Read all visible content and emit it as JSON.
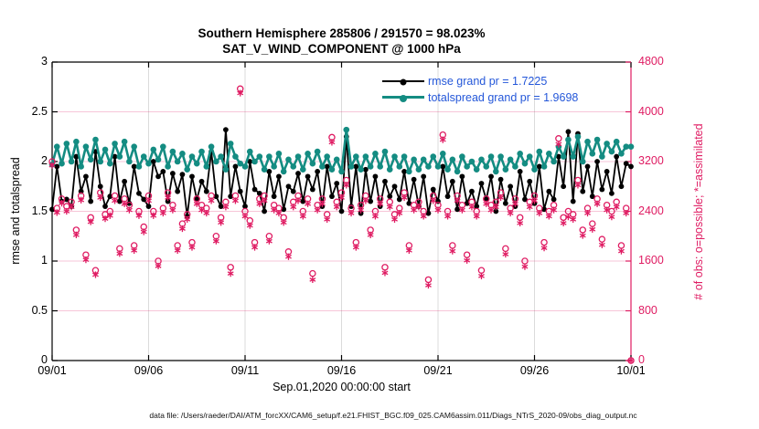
{
  "figure": {
    "title_line1": "Southern Hemisphere 285806 / 291570 = 98.023%",
    "title_line2": "SAT_V_WIND_COMPONENT @ 1000 hPa",
    "xlabel": "Sep.01,2020 00:00:00 start",
    "ylabel_left": "rmse and totalspread",
    "ylabel_right": "# of obs: o=possible; *=assimilated",
    "footer": "data file: /Users/raeder/DAI/ATM_forcXX/CAM6_setup/f.e21.FHIST_BGC.f09_025.CAM6assim.011/Diags_NTrS_2020-09/obs_diag_output.nc",
    "colors": {
      "rmse": "#000000",
      "totalspread": "#148c82",
      "obs": "#df1b62",
      "legend_text": "#2457d9",
      "grid_vertical": "rgba(0,0,0,0.14)",
      "grid_horizontal": "rgba(223,27,98,0.25)"
    }
  },
  "legend": {
    "rmse_label": "rmse grand pr = 1.7225",
    "totalspread_label": "totalspread grand pr = 1.9698"
  },
  "chart_data": {
    "type": "line",
    "title": "Southern Hemisphere 285806 / 291570 = 98.023% | SAT_V_WIND_COMPONENT @ 1000 hPa",
    "x_axis": {
      "label": "Sep.01,2020 00:00:00 start",
      "tick_labels": [
        "09/01",
        "09/06",
        "09/11",
        "09/16",
        "09/21",
        "09/26",
        "10/01"
      ],
      "tick_indices": [
        0,
        20,
        40,
        60,
        80,
        100,
        120
      ],
      "points_per_day": 4,
      "n_points": 121
    },
    "y_left": {
      "label": "rmse and totalspread",
      "min": 0,
      "max": 3,
      "tick_values": [
        0,
        0.5,
        1,
        1.5,
        2,
        2.5,
        3
      ],
      "tick_labels": [
        "0",
        "0.5",
        "1",
        "1.5",
        "2",
        "2.5",
        "3"
      ]
    },
    "y_right": {
      "label": "# of obs: o=possible; *=assimilated",
      "min": 0,
      "max": 4800,
      "tick_values": [
        0,
        800,
        1600,
        2400,
        3200,
        4000,
        4800
      ],
      "tick_labels": [
        "0",
        "800",
        "1600",
        "2400",
        "3200",
        "4000",
        "4800"
      ]
    },
    "legend_position": "upper-right-inside",
    "grid": true,
    "series": [
      {
        "name": "rmse",
        "axis": "left",
        "style": "line-dot",
        "grand_pr": 1.7225,
        "values": [
          1.52,
          1.95,
          1.6,
          1.62,
          1.55,
          2.05,
          1.7,
          1.85,
          1.6,
          2.1,
          1.75,
          1.55,
          1.65,
          2.05,
          1.6,
          1.8,
          1.58,
          1.95,
          1.68,
          1.62,
          1.55,
          2.0,
          1.85,
          1.9,
          1.6,
          1.88,
          1.7,
          1.87,
          1.45,
          1.85,
          1.62,
          1.8,
          1.7,
          2.1,
          1.65,
          1.55,
          2.32,
          1.65,
          1.95,
          1.7,
          1.55,
          2.0,
          1.72,
          1.68,
          1.5,
          1.9,
          1.65,
          1.85,
          1.52,
          1.75,
          1.7,
          1.88,
          1.6,
          1.85,
          1.72,
          1.9,
          1.55,
          1.95,
          1.65,
          1.78,
          1.5,
          2.25,
          1.55,
          1.95,
          1.48,
          1.92,
          1.6,
          1.85,
          1.55,
          1.8,
          1.65,
          1.75,
          1.62,
          1.9,
          1.58,
          1.82,
          1.55,
          1.85,
          1.48,
          1.72,
          1.6,
          1.95,
          1.65,
          1.8,
          1.52,
          1.85,
          1.58,
          1.7,
          1.55,
          1.78,
          1.62,
          1.85,
          1.5,
          1.82,
          1.58,
          1.75,
          1.55,
          1.9,
          1.62,
          1.8,
          1.58,
          1.95,
          1.52,
          1.7,
          1.62,
          2.05,
          1.75,
          2.3,
          1.6,
          2.28,
          1.7,
          1.95,
          1.65,
          2.0,
          1.72,
          1.9,
          1.68,
          2.05,
          1.75,
          1.98,
          1.95
        ]
      },
      {
        "name": "totalspread",
        "axis": "left",
        "style": "line-dot",
        "grand_pr": 1.9698,
        "values": [
          1.97,
          2.15,
          1.98,
          2.18,
          2.0,
          2.2,
          1.95,
          2.15,
          2.02,
          2.22,
          2.0,
          2.12,
          1.98,
          2.18,
          2.05,
          2.2,
          2.0,
          2.15,
          1.95,
          2.05,
          1.98,
          2.12,
          2.02,
          2.15,
          1.95,
          2.1,
          2.0,
          2.08,
          1.92,
          2.05,
          1.98,
          2.1,
          1.95,
          2.15,
          2.0,
          2.05,
          1.92,
          2.18,
          2.05,
          1.98,
          1.95,
          2.1,
          2.0,
          2.05,
          1.92,
          2.05,
          1.95,
          2.08,
          1.9,
          2.02,
          1.95,
          2.05,
          1.92,
          2.08,
          1.98,
          2.1,
          1.95,
          2.05,
          1.92,
          2.02,
          1.9,
          2.32,
          1.95,
          2.05,
          1.92,
          2.05,
          1.95,
          2.08,
          1.95,
          2.1,
          1.92,
          2.05,
          1.95,
          2.05,
          1.9,
          2.02,
          1.92,
          2.02,
          1.95,
          2.05,
          1.95,
          2.08,
          1.92,
          2.02,
          1.9,
          2.05,
          1.95,
          2.0,
          1.92,
          2.02,
          1.95,
          2.05,
          1.9,
          2.05,
          1.92,
          2.02,
          1.95,
          2.08,
          1.98,
          2.05,
          1.92,
          2.1,
          1.95,
          2.08,
          2.0,
          2.15,
          2.05,
          2.22,
          2.05,
          2.25,
          2.0,
          2.2,
          2.08,
          2.22,
          2.05,
          2.18,
          2.1,
          2.2,
          2.08,
          2.15,
          2.15
        ]
      },
      {
        "name": "possible",
        "axis": "right",
        "style": "circle",
        "values": [
          3200,
          2450,
          2600,
          2480,
          2550,
          2100,
          2650,
          1700,
          2300,
          1450,
          2700,
          2350,
          2400,
          2650,
          1800,
          2600,
          2500,
          1850,
          2400,
          2150,
          2650,
          2400,
          1600,
          2450,
          2700,
          2500,
          1850,
          2200,
          2350,
          1900,
          2600,
          2500,
          2450,
          2650,
          2000,
          2300,
          2550,
          1500,
          2650,
          4370,
          2400,
          2250,
          1900,
          2600,
          2650,
          2000,
          2500,
          2450,
          2300,
          1750,
          2550,
          2650,
          2400,
          2600,
          1400,
          2500,
          2600,
          2350,
          3590,
          2550,
          2700,
          2900,
          2450,
          1900,
          2500,
          2650,
          2100,
          2400,
          2600,
          1500,
          2550,
          2350,
          2450,
          2700,
          1850,
          2500,
          2550,
          2400,
          1300,
          2650,
          2500,
          3630,
          2400,
          1850,
          2650,
          2500,
          1700,
          2550,
          2400,
          1450,
          2600,
          2500,
          2550,
          2700,
          1800,
          2450,
          2600,
          2300,
          1600,
          2550,
          2650,
          2450,
          1900,
          2400,
          2500,
          3570,
          2300,
          2400,
          2350,
          2900,
          2100,
          2450,
          2200,
          2600,
          1950,
          2500,
          2400,
          2550,
          1850,
          2450,
          0
        ]
      },
      {
        "name": "assimilated",
        "axis": "right",
        "style": "asterisk",
        "values": [
          3140,
          2380,
          2530,
          2400,
          2470,
          2020,
          2580,
          1620,
          2230,
          1380,
          2620,
          2280,
          2330,
          2570,
          1720,
          2520,
          2420,
          1770,
          2330,
          2070,
          2570,
          2330,
          1520,
          2370,
          2620,
          2420,
          1770,
          2120,
          2270,
          1820,
          2520,
          2420,
          2370,
          2570,
          1920,
          2220,
          2470,
          1400,
          2570,
          4300,
          2320,
          2170,
          1820,
          2520,
          2570,
          1920,
          2420,
          2370,
          2220,
          1670,
          2470,
          2570,
          2320,
          2520,
          1300,
          2420,
          2520,
          2270,
          3510,
          2470,
          2620,
          2820,
          2370,
          1820,
          2420,
          2570,
          2020,
          2320,
          2520,
          1410,
          2470,
          2270,
          2370,
          2620,
          1770,
          2420,
          2470,
          2320,
          1210,
          2570,
          2420,
          3550,
          2320,
          1760,
          2570,
          2420,
          1610,
          2470,
          2320,
          1360,
          2520,
          2420,
          2470,
          2620,
          1710,
          2370,
          2520,
          2210,
          1510,
          2470,
          2570,
          2370,
          1810,
          2320,
          2420,
          3480,
          2210,
          2310,
          2270,
          2820,
          2010,
          2370,
          2110,
          2520,
          1860,
          2420,
          2310,
          2470,
          1760,
          2370,
          0
        ]
      }
    ]
  }
}
